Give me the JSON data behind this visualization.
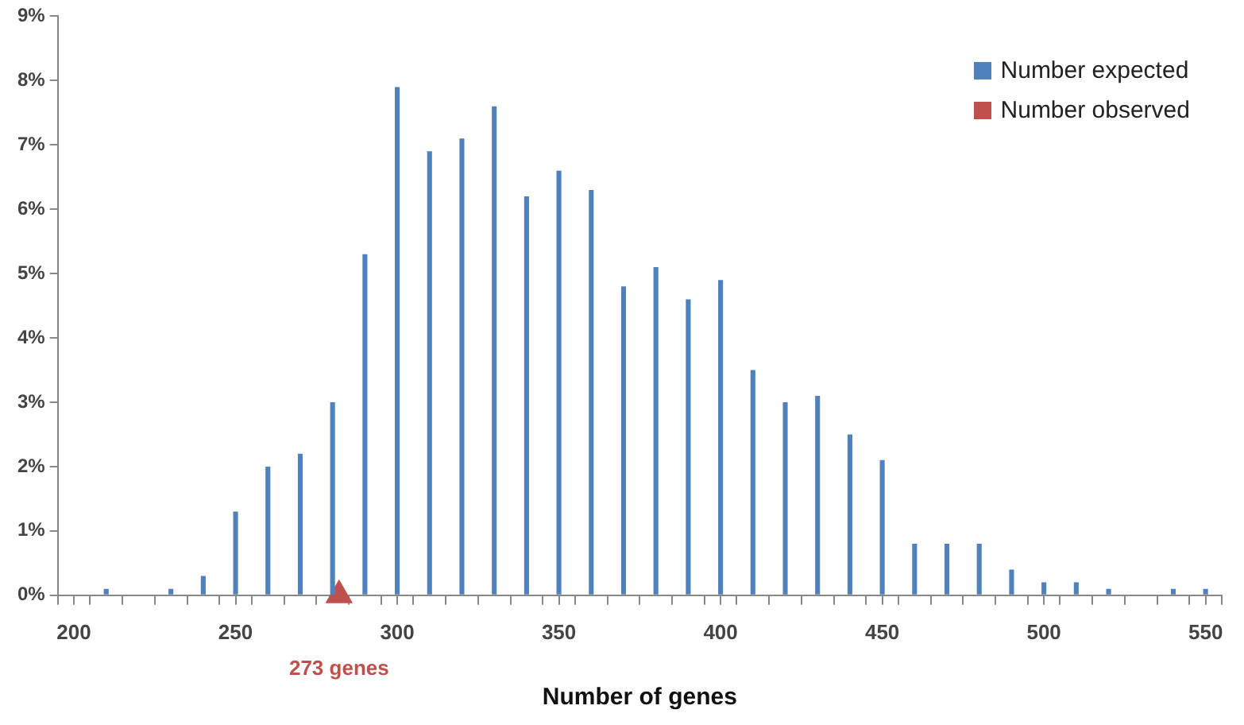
{
  "chart_data": {
    "type": "bar",
    "xlabel": "Number of genes",
    "x": [
      200,
      210,
      220,
      230,
      240,
      250,
      260,
      270,
      280,
      290,
      300,
      310,
      320,
      330,
      340,
      350,
      360,
      370,
      380,
      390,
      400,
      410,
      420,
      430,
      440,
      450,
      460,
      470,
      480,
      490,
      500,
      510,
      520,
      530,
      540,
      550
    ],
    "series": [
      {
        "name": "Number expected",
        "color": "#4f81bd",
        "values": [
          0,
          0.1,
          0,
          0.1,
          0.3,
          1.3,
          2.0,
          2.2,
          3.0,
          5.3,
          7.9,
          6.9,
          7.1,
          7.6,
          6.2,
          6.6,
          6.3,
          4.8,
          5.1,
          4.6,
          4.9,
          3.5,
          3.0,
          3.1,
          2.5,
          2.1,
          0.8,
          0.8,
          0.8,
          0.4,
          0.2,
          0.2,
          0.1,
          0,
          0.1,
          0.1
        ]
      },
      {
        "name": "Number observed",
        "color": "#c0504d",
        "type": "scatter",
        "marker": "triangle",
        "x": [
          282
        ],
        "values": [
          0
        ]
      }
    ],
    "annotations": [
      {
        "text": "273 genes",
        "x": 282,
        "y": 0
      }
    ],
    "xlim": [
      195,
      555
    ],
    "xticks": [
      {
        "value": 195,
        "label": null
      },
      200,
      {
        "value": 205,
        "label": null
      },
      {
        "value": 215,
        "label": null
      },
      {
        "value": 225,
        "label": null
      },
      {
        "value": 235,
        "label": null
      },
      {
        "value": 245,
        "label": null
      },
      250,
      {
        "value": 255,
        "label": null
      },
      {
        "value": 265,
        "label": null
      },
      {
        "value": 275,
        "label": null
      },
      {
        "value": 285,
        "label": null
      },
      {
        "value": 295,
        "label": null
      },
      300,
      {
        "value": 305,
        "label": null
      },
      {
        "value": 315,
        "label": null
      },
      {
        "value": 325,
        "label": null
      },
      {
        "value": 335,
        "label": null
      },
      {
        "value": 345,
        "label": null
      },
      350,
      {
        "value": 355,
        "label": null
      },
      {
        "value": 365,
        "label": null
      },
      {
        "value": 375,
        "label": null
      },
      {
        "value": 385,
        "label": null
      },
      {
        "value": 395,
        "label": null
      },
      400,
      {
        "value": 405,
        "label": null
      },
      {
        "value": 415,
        "label": null
      },
      {
        "value": 425,
        "label": null
      },
      {
        "value": 435,
        "label": null
      },
      {
        "value": 445,
        "label": null
      },
      450,
      {
        "value": 455,
        "label": null
      },
      {
        "value": 465,
        "label": null
      },
      {
        "value": 475,
        "label": null
      },
      {
        "value": 485,
        "label": null
      },
      {
        "value": 495,
        "label": null
      },
      500,
      {
        "value": 505,
        "label": null
      },
      {
        "value": 515,
        "label": null
      },
      {
        "value": 525,
        "label": null
      },
      {
        "value": 535,
        "label": null
      },
      {
        "value": 545,
        "label": null
      },
      550,
      {
        "value": 555,
        "label": null
      }
    ],
    "ylim": [
      0,
      9
    ],
    "yticks": [
      {
        "value": 0,
        "label": "0%"
      },
      {
        "value": 1,
        "label": "1%"
      },
      {
        "value": 2,
        "label": "2%"
      },
      {
        "value": 3,
        "label": "3%"
      },
      {
        "value": 4,
        "label": "4%"
      },
      {
        "value": 5,
        "label": "5%"
      },
      {
        "value": 6,
        "label": "6%"
      },
      {
        "value": 7,
        "label": "7%"
      },
      {
        "value": 8,
        "label": "8%"
      },
      {
        "value": 9,
        "label": "9%"
      }
    ],
    "grid": false,
    "legend": "top right"
  }
}
